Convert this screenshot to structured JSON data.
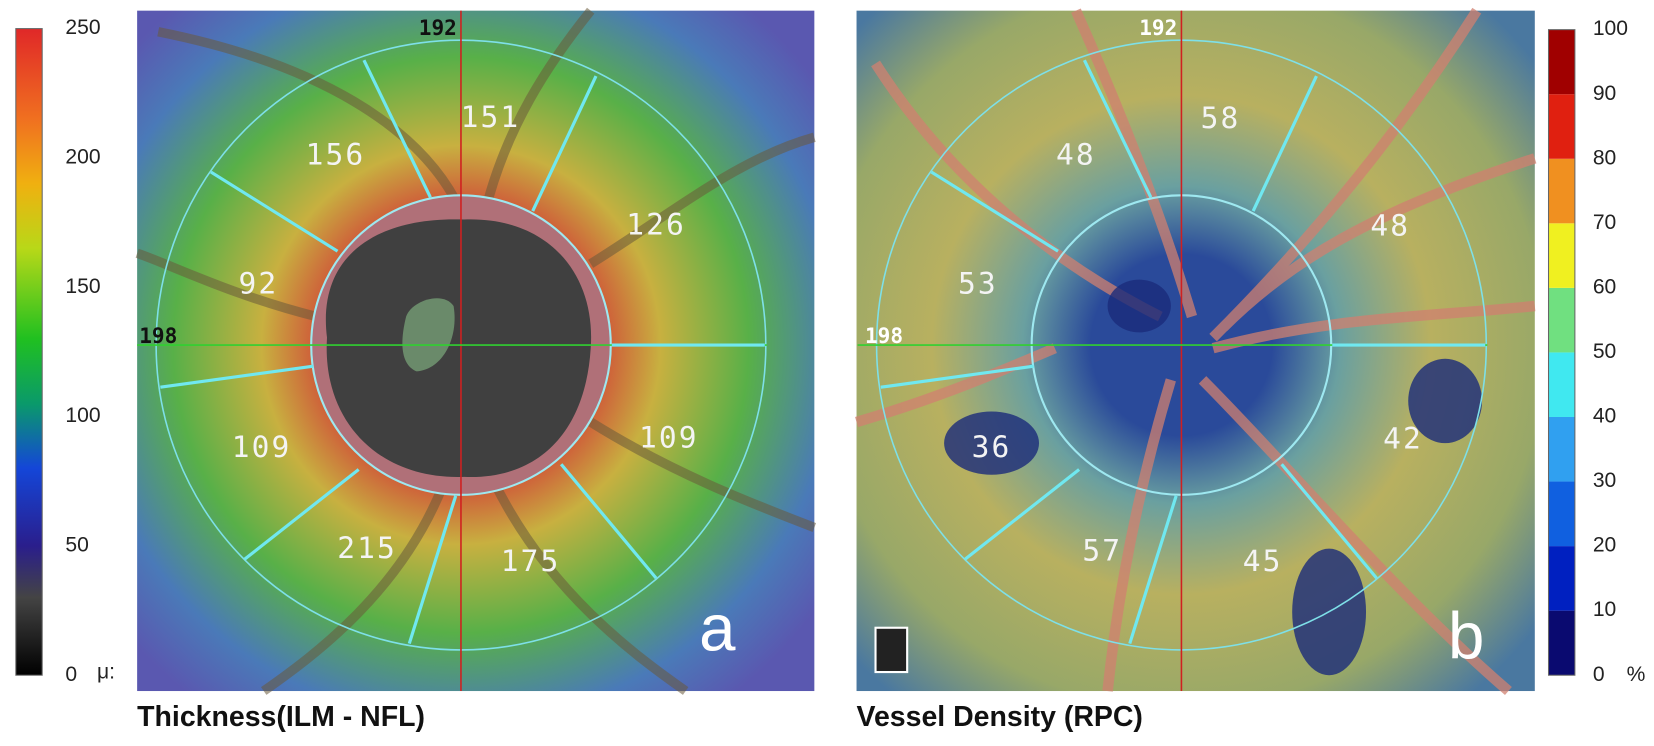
{
  "left_panel": {
    "caption": "Thickness(ILM - NFL)",
    "panel_label": "a",
    "colorbar": {
      "ticks": [
        250,
        200,
        150,
        100,
        50,
        0
      ],
      "unit": "μ:"
    },
    "markers": {
      "top": "192",
      "left": "198"
    },
    "sectors": [
      151,
      156,
      126,
      92,
      109,
      109,
      215,
      175
    ]
  },
  "right_panel": {
    "caption": "Vessel Density (RPC)",
    "panel_label": "b",
    "colorbar": {
      "ticks": [
        100,
        90,
        80,
        70,
        60,
        50,
        40,
        30,
        20,
        10,
        0
      ],
      "unit": "%"
    },
    "markers": {
      "top": "192",
      "left": "198"
    },
    "sectors": [
      58,
      48,
      48,
      53,
      36,
      42,
      57,
      45
    ]
  }
}
